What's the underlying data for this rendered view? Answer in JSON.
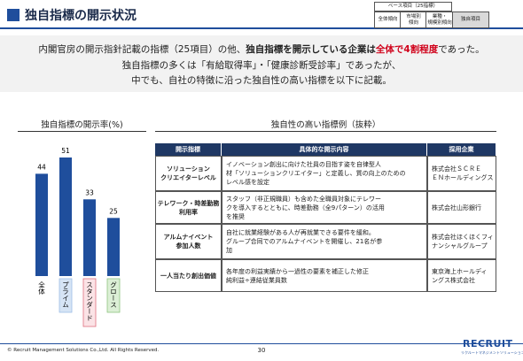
{
  "header": {
    "title": "独自指標の開示状況",
    "breadcrumb": {
      "base": "ベース項目（25指標）",
      "steps": [
        [
          "全体傾向"
        ],
        [
          "市場別",
          "傾向"
        ],
        [
          "業種・",
          "規模別傾向"
        ],
        [
          "独自項目"
        ]
      ]
    }
  },
  "intro": {
    "line1": [
      "内閣官房の開示指針記載の指標（25項目）の他、",
      "独自指標を開示している企業は",
      "全体で4割程度",
      "であった。"
    ],
    "line2": "独自指標の多くは「有給取得率」・「健康診断受診率」であったが、",
    "line3": "中でも、自社の特徴に沿った独自性の高い指標を以下に記載。"
  },
  "chart_data": {
    "type": "bar",
    "title": "独自指標の開示率(%)",
    "categories": [
      "全体",
      "プライム",
      "スタンダード",
      "グロース"
    ],
    "values": [
      44,
      51,
      33,
      25
    ],
    "color": "#1f4e9c",
    "label_backgrounds": [
      "#ffffff",
      "#d6e4f5",
      "#fbe3e6",
      "#dcefd6"
    ],
    "label_borders": [
      "#ffffff",
      "#9fbfe6",
      "#e07080",
      "#8fc47f"
    ]
  },
  "table": {
    "title": "独自性の高い指標例（抜粋）",
    "headers": [
      "開示指標",
      "具体的な開示内容",
      "採用企業"
    ],
    "rows": [
      [
        [
          "ソリューション",
          "クリエイターレベル"
        ],
        [
          "イノベーション創出に向けた社員の目指す姿を自律型人",
          "材「ソリューションクリエイター」と定義し、質の向上のための",
          "レベル感を設定"
        ],
        [
          "株式会社ＳＣＲＥ",
          "ＥＮホールディングス"
        ]
      ],
      [
        [
          "テレワーク・時差勤務",
          "利用率"
        ],
        [
          "スタッフ（非正規職員）も含めた全職員対象にテレワー",
          "クを導入するとともに、時差勤務（全9パターン）の活用",
          "を推奨"
        ],
        [
          "株式会社山形銀行"
        ]
      ],
      [
        [
          "アルムナイベント",
          "参加人数"
        ],
        [
          "自社に就業経験がある人が再就業できる要件を緩和。",
          "グループ合同でのアルムナイベントを開催し、21名が参",
          "加"
        ],
        [
          "株式会社ほくほくフィ",
          "ナンシャルグループ"
        ]
      ],
      [
        [
          "一人当たり創出価値"
        ],
        [
          "各年度の利益実績から一過性の要素を補正した修正",
          "純利益÷連結従業員数"
        ],
        [
          "東京海上ホールディ",
          "ングス株式会社"
        ]
      ]
    ]
  },
  "footer": {
    "copyright": "© Recruit Management Solutions Co.,Ltd. All Rights Reserved.",
    "page": "30",
    "logo": "RECRUIT",
    "logo_sub": "リクルートマネジメントソリューションズ"
  }
}
